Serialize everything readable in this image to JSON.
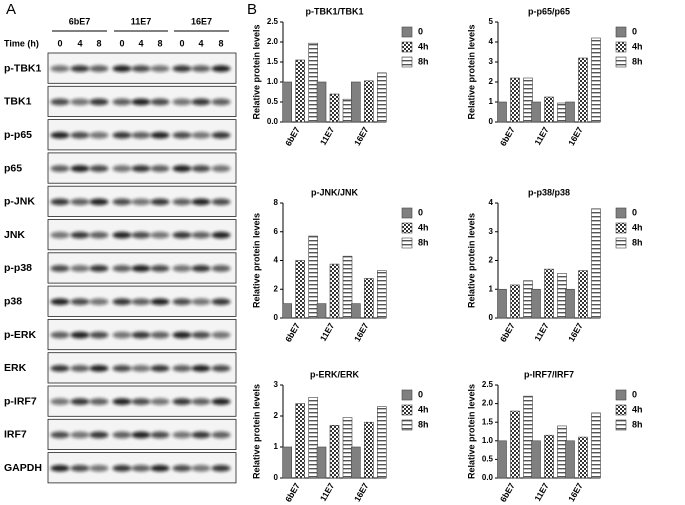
{
  "panel_labels": [
    "A",
    "B"
  ],
  "blot": {
    "time_label": "Time (h)",
    "groups": [
      "6bE7",
      "11E7",
      "16E7"
    ],
    "times": [
      "0",
      "4",
      "8",
      "0",
      "4",
      "8",
      "0",
      "4",
      "8"
    ],
    "rows": [
      "p-TBK1",
      "TBK1",
      "p-p65",
      "p65",
      "p-JNK",
      "JNK",
      "p-p38",
      "p38",
      "p-ERK",
      "ERK",
      "p-IRF7",
      "IRF7",
      "GAPDH"
    ]
  },
  "chart_data": [
    {
      "type": "bar",
      "title": "p-TBK1/TBK1",
      "ylabel": "Relative protein levels",
      "categories": [
        "6bE7",
        "11E7",
        "16E7"
      ],
      "series": [
        {
          "name": "0",
          "color": "#808080",
          "pattern": "solid",
          "values": [
            1,
            1,
            1
          ]
        },
        {
          "name": "4h",
          "color": "#333333",
          "pattern": "checker",
          "values": [
            1.55,
            0.7,
            1.03
          ]
        },
        {
          "name": "8h",
          "color": "#555555",
          "pattern": "stripes",
          "values": [
            1.97,
            0.57,
            1.23
          ]
        }
      ],
      "ylim": [
        0,
        2.5
      ],
      "yticks": [
        {
          "value": 0,
          "label": "0.0"
        },
        0.5,
        {
          "value": 1,
          "label": "1.0"
        },
        1.5,
        {
          "value": 2,
          "label": "2.0"
        },
        2.5
      ]
    },
    {
      "type": "bar",
      "title": "p-p65/p65",
      "ylabel": "Relative protein levels",
      "categories": [
        "6bE7",
        "11E7",
        "16E7"
      ],
      "series": [
        {
          "name": "0",
          "color": "#808080",
          "pattern": "solid",
          "values": [
            1,
            1,
            1
          ]
        },
        {
          "name": "4h",
          "color": "#333333",
          "pattern": "checker",
          "values": [
            2.2,
            1.25,
            3.2
          ]
        },
        {
          "name": "8h",
          "color": "#555555",
          "pattern": "stripes",
          "values": [
            2.2,
            0.95,
            4.2
          ]
        }
      ],
      "ylim": [
        0,
        5
      ],
      "yticks": [
        0,
        1,
        2,
        3,
        4,
        5
      ]
    },
    {
      "type": "bar",
      "title": "p-JNK/JNK",
      "ylabel": "Relative protein levels",
      "categories": [
        "6bE7",
        "11E7",
        "16E7"
      ],
      "series": [
        {
          "name": "0",
          "color": "#808080",
          "pattern": "solid",
          "values": [
            1,
            1,
            1
          ]
        },
        {
          "name": "4h",
          "color": "#333333",
          "pattern": "checker",
          "values": [
            4,
            3.75,
            2.75
          ]
        },
        {
          "name": "8h",
          "color": "#555555",
          "pattern": "stripes",
          "values": [
            5.7,
            4.3,
            3.3
          ]
        }
      ],
      "ylim": [
        0,
        8
      ],
      "yticks": [
        0,
        2,
        4,
        6,
        8
      ]
    },
    {
      "type": "bar",
      "title": "p-p38/p38",
      "ylabel": "Relative protein levels",
      "categories": [
        "6bE7",
        "11E7",
        "16E7"
      ],
      "series": [
        {
          "name": "0",
          "color": "#808080",
          "pattern": "solid",
          "values": [
            1,
            1,
            1
          ]
        },
        {
          "name": "4h",
          "color": "#333333",
          "pattern": "checker",
          "values": [
            1.15,
            1.7,
            1.65
          ]
        },
        {
          "name": "8h",
          "color": "#555555",
          "pattern": "stripes",
          "values": [
            1.3,
            1.55,
            3.8
          ]
        }
      ],
      "ylim": [
        0,
        4
      ],
      "yticks": [
        0,
        1,
        2,
        3,
        4
      ]
    },
    {
      "type": "bar",
      "title": "p-ERK/ERK",
      "ylabel": "Relative protein levels",
      "categories": [
        "6bE7",
        "11E7",
        "16E7"
      ],
      "series": [
        {
          "name": "0",
          "color": "#808080",
          "pattern": "solid",
          "values": [
            1,
            1,
            1
          ]
        },
        {
          "name": "4h",
          "color": "#333333",
          "pattern": "checker",
          "values": [
            2.4,
            1.7,
            1.8
          ]
        },
        {
          "name": "8h",
          "color": "#555555",
          "pattern": "stripes",
          "values": [
            2.6,
            1.95,
            2.3
          ]
        }
      ],
      "ylim": [
        0,
        3
      ],
      "yticks": [
        0,
        1,
        2,
        3
      ]
    },
    {
      "type": "bar",
      "title": "p-IRF7/IRF7",
      "ylabel": "Relative protein levels",
      "categories": [
        "6bE7",
        "11E7",
        "16E7"
      ],
      "series": [
        {
          "name": "0",
          "color": "#808080",
          "pattern": "solid",
          "values": [
            1,
            1,
            1
          ]
        },
        {
          "name": "4h",
          "color": "#333333",
          "pattern": "checker",
          "values": [
            1.8,
            1.15,
            1.1
          ]
        },
        {
          "name": "8h",
          "color": "#555555",
          "pattern": "stripes",
          "values": [
            2.2,
            1.4,
            1.75
          ]
        }
      ],
      "ylim": [
        0,
        2.5
      ],
      "yticks": [
        {
          "value": 0,
          "label": "0.0"
        },
        0.5,
        {
          "value": 1,
          "label": "1.0"
        },
        1.5,
        {
          "value": 2,
          "label": "2.0"
        },
        2.5
      ]
    }
  ]
}
